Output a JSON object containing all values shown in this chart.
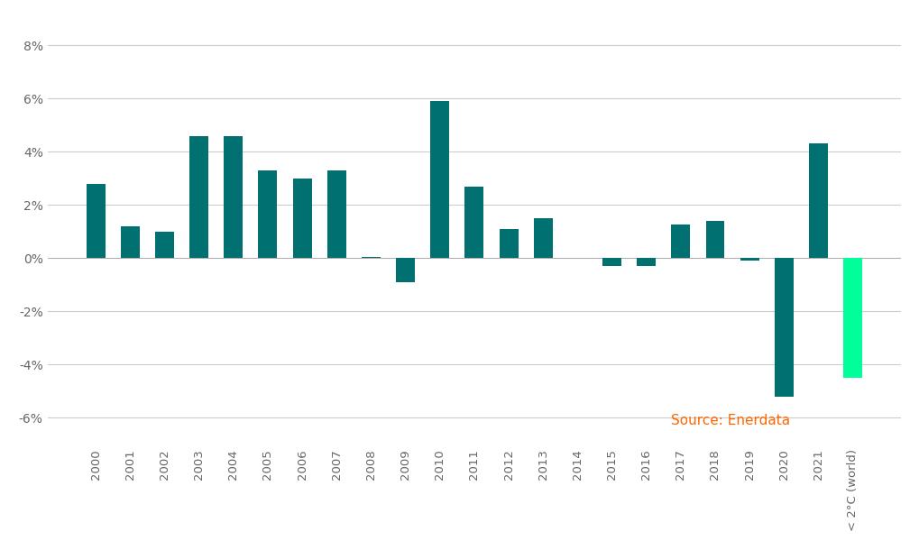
{
  "categories": [
    "2000",
    "2001",
    "2002",
    "2003",
    "2004",
    "2005",
    "2006",
    "2007",
    "2008",
    "2009",
    "2010",
    "2011",
    "2012",
    "2013",
    "2014",
    "2015",
    "2016",
    "2017",
    "2018",
    "2019",
    "2020",
    "2021",
    "< 2°C (world)"
  ],
  "values": [
    2.8,
    1.2,
    1.0,
    4.6,
    4.6,
    3.3,
    3.0,
    3.3,
    0.05,
    -0.9,
    5.9,
    2.7,
    1.1,
    1.5,
    0.0,
    -0.3,
    -0.3,
    1.25,
    1.4,
    -0.1,
    -5.2,
    4.3,
    -4.5
  ],
  "bar_color_teal": "#007070",
  "bar_color_green": "#00FF99",
  "source_text": "Source: Enerdata",
  "source_color": "#FF6600",
  "ylim": [
    -7,
    9
  ],
  "yticks": [
    -6,
    -4,
    -2,
    0,
    2,
    4,
    6,
    8
  ],
  "ytick_labels": [
    "-6%",
    "-4%",
    "-2%",
    "0%",
    "2%",
    "4%",
    "6%",
    "8%"
  ],
  "background_color": "#FFFFFF",
  "grid_color": "#CCCCCC",
  "tick_label_color": "#666666",
  "bar_width": 0.55
}
